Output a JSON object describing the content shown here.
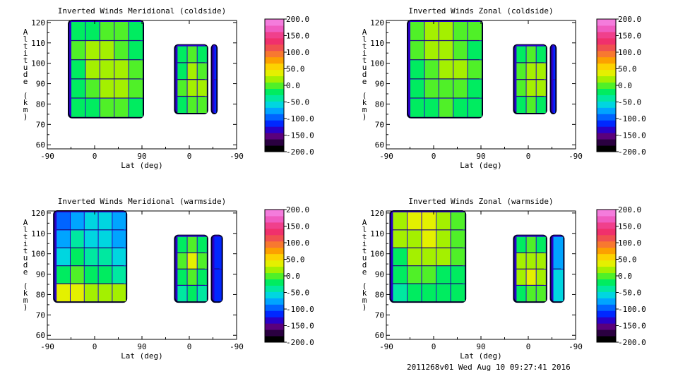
{
  "footer": "2011268v01 Wed Aug 10 09:27:41 2016",
  "colorbar": {
    "ticks": [
      "200.0",
      "150.0",
      "100.0",
      "50.0",
      "0.0",
      "-50.0",
      "-100.0",
      "-150.0",
      "-200.0"
    ],
    "colors": [
      "#000000",
      "#2a0040",
      "#5a007c",
      "#2a00c8",
      "#0028ff",
      "#0064ff",
      "#00a4ff",
      "#00d6e0",
      "#00e8a0",
      "#00ec60",
      "#50f028",
      "#a4f000",
      "#e4f000",
      "#fcd200",
      "#fca000",
      "#f87830",
      "#f05050",
      "#f0306c",
      "#f0408c",
      "#f05cc0",
      "#f47cdc"
    ]
  },
  "chart_data": [
    {
      "type": "heatmap",
      "title": "Inverted Winds Meridional (coldside)",
      "xlabel": "Lat (deg)",
      "ylabel": "Altitude (km)",
      "x_ticks": [
        "-90",
        "0",
        "90",
        "0",
        "-90"
      ],
      "y_ticks": [
        "60",
        "70",
        "80",
        "90",
        "100",
        "110",
        "120"
      ],
      "ylim": [
        58,
        121
      ],
      "zlim": [
        -200,
        200
      ],
      "regions": [
        {
          "x": [
            -47,
            90
          ],
          "alt": [
            74,
            121
          ],
          "values": [
            [
              -20,
              -10,
              0,
              -5,
              -15
            ],
            [
              -5,
              10,
              20,
              5,
              -10
            ],
            [
              -10,
              15,
              25,
              15,
              0
            ],
            [
              -15,
              5,
              20,
              10,
              -5
            ],
            [
              -25,
              -10,
              5,
              0,
              -20
            ]
          ]
        },
        {
          "x": [
            155,
            212
          ],
          "alt": [
            76,
            109
          ],
          "values": [
            [
              -20,
              -5,
              -10
            ],
            [
              -10,
              10,
              5
            ],
            [
              0,
              20,
              10
            ],
            [
              -15,
              5,
              -5
            ]
          ]
        },
        {
          "x": [
            225,
            230
          ],
          "alt": [
            76,
            109
          ],
          "values": [
            [
              -120
            ],
            [
              -120
            ]
          ]
        }
      ]
    },
    {
      "type": "heatmap",
      "title": "Inverted Winds Zonal (coldside)",
      "xlabel": "Lat (deg)",
      "ylabel": "Altitude (km)",
      "x_ticks": [
        "-90",
        "0",
        "90",
        "0",
        "-90"
      ],
      "y_ticks": [
        "60",
        "70",
        "80",
        "90",
        "100",
        "110",
        "120"
      ],
      "ylim": [
        58,
        121
      ],
      "zlim": [
        -200,
        200
      ],
      "regions": [
        {
          "x": [
            -47,
            90
          ],
          "alt": [
            74,
            121
          ],
          "values": [
            [
              0,
              10,
              15,
              5,
              -5
            ],
            [
              5,
              20,
              10,
              0,
              -10
            ],
            [
              -10,
              5,
              15,
              10,
              0
            ],
            [
              -15,
              -5,
              0,
              5,
              -10
            ],
            [
              -20,
              -10,
              -5,
              -10,
              -25
            ]
          ]
        },
        {
          "x": [
            155,
            212
          ],
          "alt": [
            76,
            109
          ],
          "values": [
            [
              -10,
              0,
              -10
            ],
            [
              0,
              15,
              10
            ],
            [
              -5,
              20,
              25
            ],
            [
              -15,
              5,
              -10
            ]
          ]
        },
        {
          "x": [
            225,
            230
          ],
          "alt": [
            76,
            109
          ],
          "values": [
            [
              -120
            ],
            [
              -120
            ]
          ]
        }
      ]
    },
    {
      "type": "heatmap",
      "title": "Inverted Winds Meridional (warmside)",
      "xlabel": "Lat (deg)",
      "ylabel": "Altitude (km)",
      "x_ticks": [
        "-90",
        "0",
        "90",
        "0",
        "-90"
      ],
      "y_ticks": [
        "60",
        "70",
        "80",
        "90",
        "100",
        "110",
        "120"
      ],
      "ylim": [
        58,
        121
      ],
      "zlim": [
        -200,
        200
      ],
      "regions": [
        {
          "x": [
            -75,
            58
          ],
          "alt": [
            77,
            121
          ],
          "values": [
            [
              -90,
              -70,
              -50,
              -60,
              -80
            ],
            [
              -70,
              -40,
              -60,
              -50,
              -70
            ],
            [
              -50,
              -20,
              -30,
              -40,
              -60
            ],
            [
              -20,
              0,
              -10,
              -20,
              -30
            ],
            [
              30,
              40,
              20,
              10,
              20
            ]
          ]
        },
        {
          "x": [
            155,
            212
          ],
          "alt": [
            77,
            109
          ],
          "values": [
            [
              -10,
              0,
              -15
            ],
            [
              5,
              30,
              -5
            ],
            [
              -15,
              -5,
              -20
            ],
            [
              -30,
              -20,
              -40
            ]
          ]
        },
        {
          "x": [
            225,
            240
          ],
          "alt": [
            77,
            109
          ],
          "values": [
            [
              -110
            ],
            [
              -110
            ]
          ]
        }
      ]
    },
    {
      "type": "heatmap",
      "title": "Inverted Winds Zonal (warmside)",
      "xlabel": "Lat (deg)",
      "ylabel": "Altitude (km)",
      "x_ticks": [
        "-90",
        "0",
        "90",
        "0",
        "-90"
      ],
      "y_ticks": [
        "60",
        "70",
        "80",
        "90",
        "100",
        "110",
        "120"
      ],
      "ylim": [
        58,
        121
      ],
      "zlim": [
        -200,
        200
      ],
      "regions": [
        {
          "x": [
            -80,
            58
          ],
          "alt": [
            77,
            121
          ],
          "values": [
            [
              20,
              40,
              35,
              15,
              0
            ],
            [
              10,
              20,
              30,
              10,
              -5
            ],
            [
              -10,
              15,
              25,
              20,
              0
            ],
            [
              -20,
              0,
              -5,
              -10,
              -15
            ],
            [
              -30,
              -20,
              -15,
              -20,
              -25
            ]
          ]
        },
        {
          "x": [
            155,
            212
          ],
          "alt": [
            77,
            109
          ],
          "values": [
            [
              -10,
              -5,
              -10
            ],
            [
              10,
              20,
              15
            ],
            [
              20,
              35,
              25
            ],
            [
              -10,
              5,
              -5
            ]
          ]
        },
        {
          "x": [
            225,
            245
          ],
          "alt": [
            77,
            109
          ],
          "values": [
            [
              -80
            ],
            [
              -60
            ]
          ]
        }
      ]
    }
  ]
}
